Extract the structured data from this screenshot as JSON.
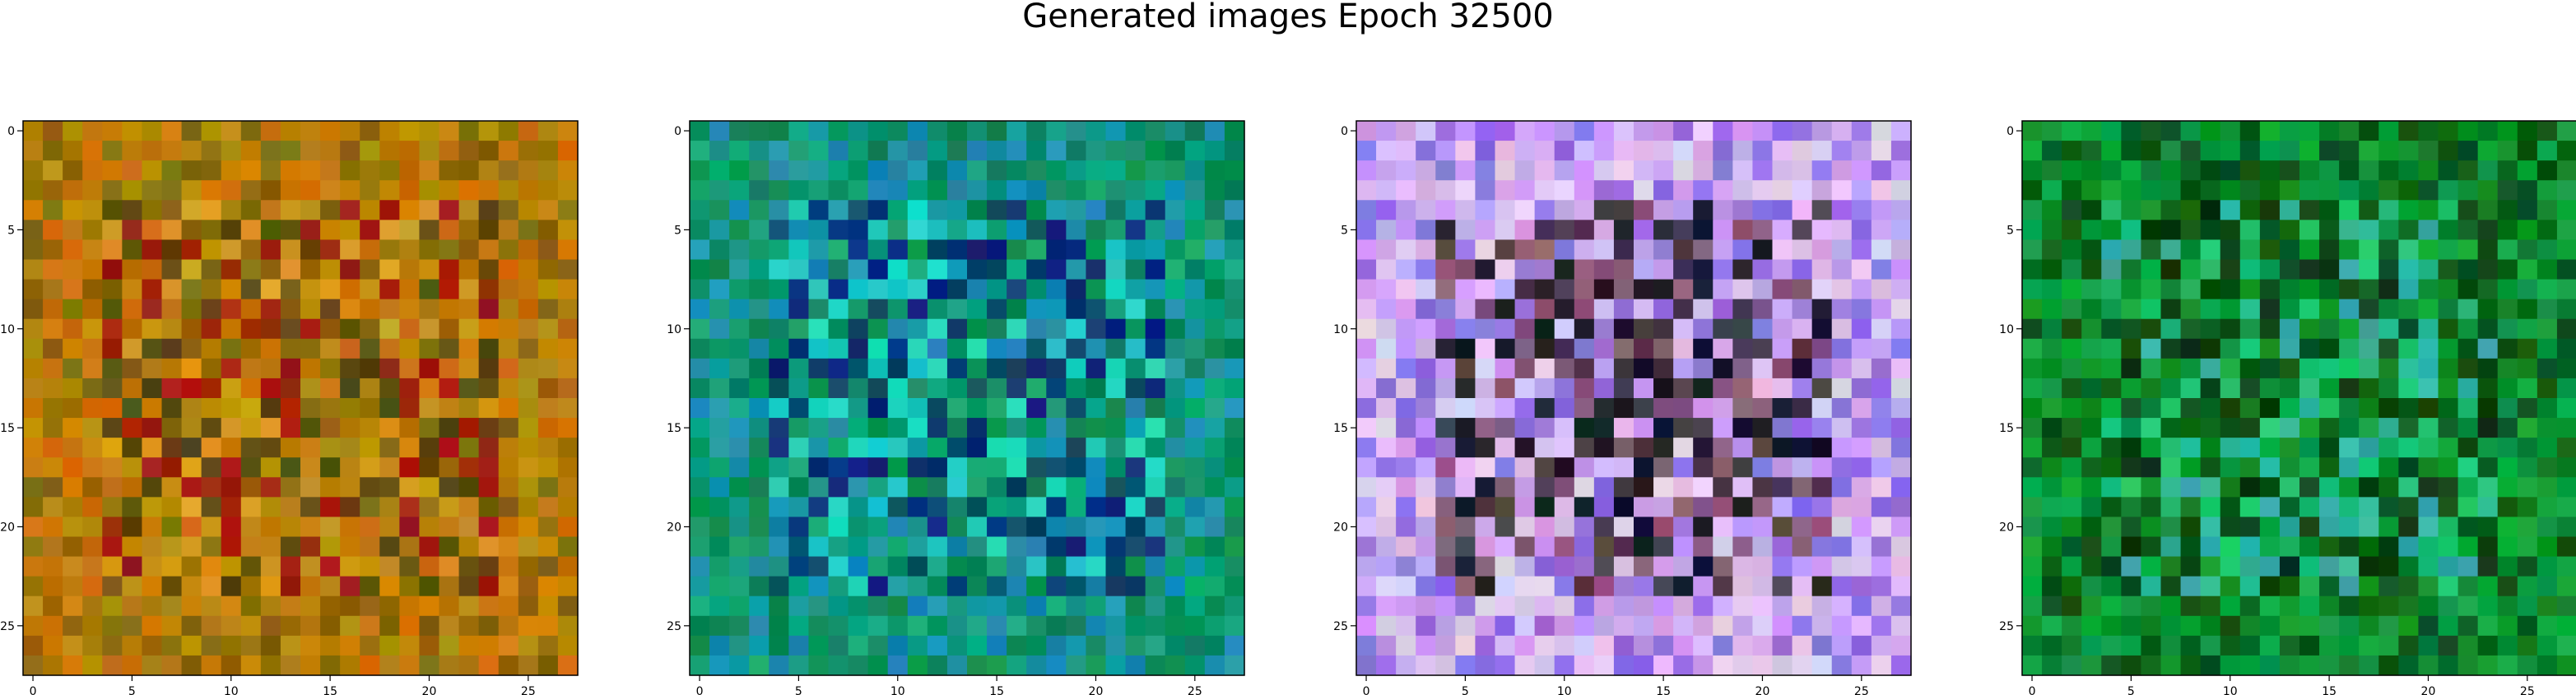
{
  "figure": {
    "title": "Generated images Epoch 32500"
  },
  "chart_data": [
    {
      "type": "heatmap",
      "panel": 1,
      "grid_size": 28,
      "xticks": [
        0,
        5,
        10,
        15,
        20,
        25
      ],
      "yticks": [
        0,
        5,
        10,
        15,
        20,
        25
      ],
      "xlim": [
        -0.5,
        27.5
      ],
      "ylim": [
        27.5,
        -0.5
      ],
      "dominant_colors": [
        "#b8860b",
        "#c8760a",
        "#8a6a0a",
        "#d49a1e",
        "#5a4a10",
        "#a02010"
      ],
      "seed": 11
    },
    {
      "type": "heatmap",
      "panel": 2,
      "grid_size": 28,
      "xticks": [
        0,
        5,
        10,
        15,
        20,
        25
      ],
      "yticks": [
        0,
        5,
        10,
        15,
        20,
        25
      ],
      "xlim": [
        -0.5,
        27.5
      ],
      "ylim": [
        27.5,
        -0.5
      ],
      "dominant_colors": [
        "#0a8a5a",
        "#13a07a",
        "#1a90b0",
        "#0a4a6a",
        "#20d0c0",
        "#0a2a7a"
      ],
      "seed": 23
    },
    {
      "type": "heatmap",
      "panel": 3,
      "grid_size": 28,
      "xticks": [
        0,
        5,
        10,
        15,
        20,
        25
      ],
      "yticks": [
        0,
        5,
        10,
        15,
        20,
        25
      ],
      "xlim": [
        -0.5,
        27.5
      ],
      "ylim": [
        27.5,
        -0.5
      ],
      "dominant_colors": [
        "#c8a0f0",
        "#9070e0",
        "#e0c8f0",
        "#4a3a4a",
        "#1a1a2a",
        "#8a5a7a"
      ],
      "seed": 37
    },
    {
      "type": "heatmap",
      "panel": 4,
      "grid_size": 28,
      "xticks": [
        0,
        5,
        10,
        15,
        20,
        25
      ],
      "yticks": [
        0,
        5,
        10,
        15,
        20,
        25
      ],
      "xlim": [
        -0.5,
        27.5
      ],
      "ylim": [
        27.5,
        -0.5
      ],
      "dominant_colors": [
        "#0a8a2a",
        "#10a040",
        "#0a5a1a",
        "#20c070",
        "#0a3a10",
        "#30b0a0"
      ],
      "seed": 51
    }
  ]
}
